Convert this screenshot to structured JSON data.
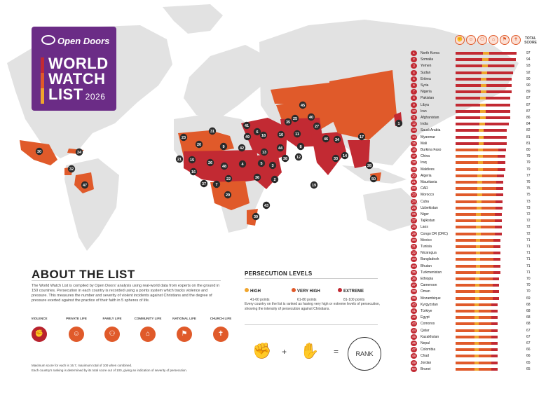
{
  "brand": {
    "logo_text": "Open Doors",
    "title_lines": [
      "WORLD",
      "WATCH",
      "LIST"
    ],
    "year": "2026"
  },
  "colors": {
    "extreme": "#c22a33",
    "very_high": "#e05a2a",
    "high": "#f0a52d",
    "logo_purple": "#6b2c86",
    "land": "#e2e2e2"
  },
  "about": {
    "heading": "ABOUT THE LIST",
    "text": "The World Watch List is compiled by Open Doors' analysis using real-world data from experts on the ground in 150 countries. Persecution in each country is recorded using a points system which tracks violence and pressure. This measures the number and severity of violent incidents against Christians and the degree of pressure exerted against the practice of their faith in 5 spheres of life.",
    "spheres": [
      {
        "label": "VIOLENCE",
        "icon": "fist-icon"
      },
      {
        "label": "PRIVATE LIFE",
        "icon": "person-icon"
      },
      {
        "label": "FAMILY LIFE",
        "icon": "family-icon"
      },
      {
        "label": "COMMUNITY LIFE",
        "icon": "community-icon"
      },
      {
        "label": "NATIONAL LIFE",
        "icon": "flag-icon"
      },
      {
        "label": "CHURCH LIFE",
        "icon": "church-icon"
      }
    ],
    "footnote_1": "Maximum score for each is 16.7, maximum total of 100 when combined.",
    "footnote_2": "Each country's ranking is determined by its total score out of 100, giving an indication of severity of persecution."
  },
  "persecution_levels": {
    "heading": "PERSECUTION LEVELS",
    "levels": [
      {
        "name": "HIGH",
        "points": "41-60 points"
      },
      {
        "name": "VERY HIGH",
        "points": "61-80 points"
      },
      {
        "name": "EXTREME",
        "points": "81-100 points"
      }
    ],
    "note": "Every country on the list is ranked as having very high or extreme levels of persecution, showing the intensity of persecution against Christians.",
    "equation": {
      "plus": "+",
      "equals": "=",
      "rank": "RANK"
    }
  },
  "ranking": {
    "total_label": "TOTAL SCORE",
    "countries": [
      {
        "rank": "1",
        "name": "North Korea",
        "score": "97"
      },
      {
        "rank": "2",
        "name": "Somalia",
        "score": "94"
      },
      {
        "rank": "3",
        "name": "Yemen",
        "score": "93"
      },
      {
        "rank": "4",
        "name": "Sudan",
        "score": "92"
      },
      {
        "rank": "5",
        "name": "Eritrea",
        "score": "90"
      },
      {
        "rank": "6",
        "name": "Syria",
        "score": "90"
      },
      {
        "rank": "7",
        "name": "Nigeria",
        "score": "89"
      },
      {
        "rank": "8",
        "name": "Pakistan",
        "score": "87"
      },
      {
        "rank": "9",
        "name": "Libya",
        "score": "87"
      },
      {
        "rank": "10",
        "name": "Iran",
        "score": "87"
      },
      {
        "rank": "11",
        "name": "Afghanistan",
        "score": "86"
      },
      {
        "rank": "12",
        "name": "India",
        "score": "84"
      },
      {
        "rank": "13",
        "name": "Saudi Arabia",
        "score": "82"
      },
      {
        "rank": "14",
        "name": "Myanmar",
        "score": "81"
      },
      {
        "rank": "15",
        "name": "Mali",
        "score": "81"
      },
      {
        "rank": "16",
        "name": "Burkina Faso",
        "score": "80"
      },
      {
        "rank": "17",
        "name": "China",
        "score": "79"
      },
      {
        "rank": "18",
        "name": "Iraq",
        "score": "79"
      },
      {
        "rank": "19",
        "name": "Maldives",
        "score": "79"
      },
      {
        "rank": "20",
        "name": "Algeria",
        "score": "77"
      },
      {
        "rank": "21",
        "name": "Mauritania",
        "score": "76"
      },
      {
        "rank": "22",
        "name": "CAR",
        "score": "75"
      },
      {
        "rank": "23",
        "name": "Morocco",
        "score": "75"
      },
      {
        "rank": "24",
        "name": "Cuba",
        "score": "73"
      },
      {
        "rank": "25",
        "name": "Uzbekistan",
        "score": "73"
      },
      {
        "rank": "26",
        "name": "Niger",
        "score": "72"
      },
      {
        "rank": "27",
        "name": "Tajikistan",
        "score": "72"
      },
      {
        "rank": "28",
        "name": "Laos",
        "score": "72"
      },
      {
        "rank": "29",
        "name": "Congo DR (DRC)",
        "score": "72"
      },
      {
        "rank": "30",
        "name": "Mexico",
        "score": "71"
      },
      {
        "rank": "31",
        "name": "Tunisia",
        "score": "71"
      },
      {
        "rank": "32",
        "name": "Nicaragua",
        "score": "71"
      },
      {
        "rank": "33",
        "name": "Bangladesh",
        "score": "71"
      },
      {
        "rank": "34",
        "name": "Bhutan",
        "score": "71"
      },
      {
        "rank": "35",
        "name": "Turkmenistan",
        "score": "71"
      },
      {
        "rank": "36",
        "name": "Ethiopia",
        "score": "70"
      },
      {
        "rank": "37",
        "name": "Cameroon",
        "score": "70"
      },
      {
        "rank": "38",
        "name": "Oman",
        "score": "70"
      },
      {
        "rank": "39",
        "name": "Mozambique",
        "score": "69"
      },
      {
        "rank": "40",
        "name": "Kyrgyzstan",
        "score": "68"
      },
      {
        "rank": "41",
        "name": "Türkiye",
        "score": "68"
      },
      {
        "rank": "42",
        "name": "Egypt",
        "score": "68"
      },
      {
        "rank": "43",
        "name": "Comoros",
        "score": "68"
      },
      {
        "rank": "44",
        "name": "Qatar",
        "score": "67"
      },
      {
        "rank": "45",
        "name": "Kazakhstan",
        "score": "67"
      },
      {
        "rank": "46",
        "name": "Nepal",
        "score": "67"
      },
      {
        "rank": "47",
        "name": "Colombia",
        "score": "66"
      },
      {
        "rank": "48",
        "name": "Chad",
        "score": "66"
      },
      {
        "rank": "49",
        "name": "Jordan",
        "score": "65"
      },
      {
        "rank": "50",
        "name": "Brunei",
        "score": "65"
      }
    ]
  },
  "map_markers": [
    "1",
    "2",
    "3",
    "4",
    "5",
    "6",
    "7",
    "8",
    "9",
    "10",
    "11",
    "12",
    "13",
    "14",
    "15",
    "16",
    "17",
    "18",
    "19",
    "20",
    "21",
    "22",
    "23",
    "24",
    "25",
    "26",
    "27",
    "28",
    "29",
    "30",
    "31",
    "32",
    "33",
    "34",
    "35",
    "36",
    "37",
    "38",
    "39",
    "40",
    "41",
    "42",
    "43",
    "44",
    "45",
    "46",
    "47",
    "48",
    "49",
    "50"
  ]
}
